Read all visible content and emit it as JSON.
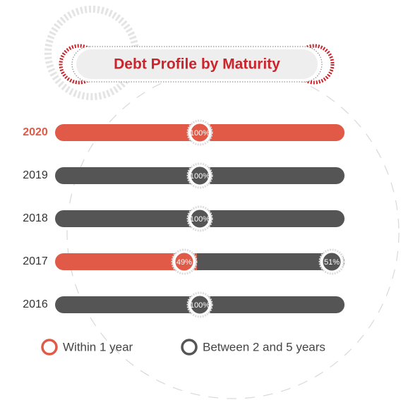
{
  "chart_data": {
    "type": "stacked-bar",
    "orientation": "horizontal",
    "title": "Debt Profile by Maturity",
    "categories": [
      "2020",
      "2019",
      "2018",
      "2017",
      "2016"
    ],
    "xlim": [
      0,
      100
    ],
    "series": [
      {
        "name": "Within 1 year",
        "color": "#e05a47",
        "values": [
          100,
          0,
          0,
          49,
          0
        ],
        "value_labels": [
          "100%",
          null,
          null,
          "49%",
          null
        ]
      },
      {
        "name": "Between 2 and 5 years",
        "color": "#555555",
        "values": [
          0,
          100,
          100,
          51,
          100
        ],
        "value_labels": [
          null,
          "100%",
          "100%",
          "51%",
          "100%"
        ]
      }
    ]
  }
}
